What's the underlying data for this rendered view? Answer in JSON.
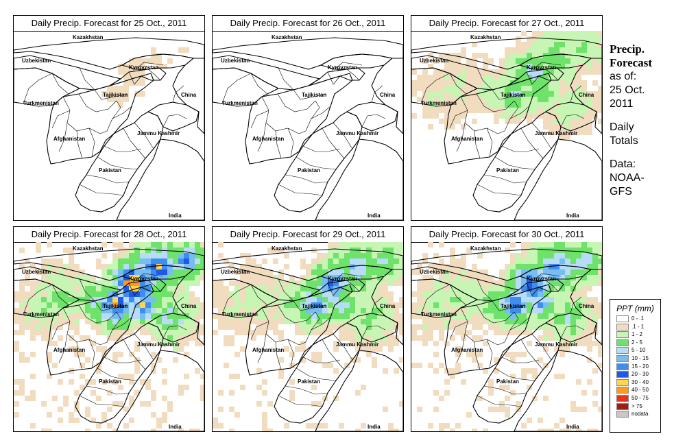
{
  "panels": [
    {
      "title": "Daily Precip. Forecast for  25 Oct., 2011",
      "precip_intensity": 0.08
    },
    {
      "title": "Daily Precip. Forecast for  26 Oct., 2011",
      "precip_intensity": 0.05
    },
    {
      "title": "Daily Precip. Forecast for  27 Oct., 2011",
      "precip_intensity": 0.55
    },
    {
      "title": "Daily Precip. Forecast for  28 Oct., 2011",
      "precip_intensity": 1.0
    },
    {
      "title": "Daily Precip. Forecast for  29 Oct., 2011",
      "precip_intensity": 0.75
    },
    {
      "title": "Daily Precip. Forecast for  30 Oct., 2011",
      "precip_intensity": 0.85
    }
  ],
  "map_labels": {
    "kazakhstan": "Kazakhstan",
    "uzbekistan": "Uzbekistan",
    "kyrgyzstan": "Kyrgyzstan",
    "tajikistan": "Tajikistan",
    "turkmenistan": "Turkmenistan",
    "china": "China",
    "afghanistan": "Afghanistan",
    "jammu_kashmir": "Jammu Kashmir",
    "pakistan": "Pakistan",
    "india": "India"
  },
  "info": {
    "heading_line1": "Precip.",
    "heading_line2": "Forecast",
    "asof_label": "as of:",
    "asof_date": "25 Oct.",
    "asof_year": "2011",
    "totals_line1": "Daily",
    "totals_line2": "Totals",
    "data_label": "Data:",
    "data_src1": "NOAA-",
    "data_src2": "GFS"
  },
  "legend": {
    "title": "PPT (mm)",
    "items": [
      {
        "label": "0 - .1",
        "color": "#ffffff"
      },
      {
        "label": ".1 - 1",
        "color": "#f1dcbf"
      },
      {
        "label": "1 - 2",
        "color": "#c6f5b4"
      },
      {
        "label": "2 - 5",
        "color": "#6ee26a"
      },
      {
        "label": "5 - 10",
        "color": "#b6dcf7"
      },
      {
        "label": "10 - 15",
        "color": "#78bdf2"
      },
      {
        "label": "15 - 20",
        "color": "#3d8ef0"
      },
      {
        "label": "20 - 30",
        "color": "#1f59e6"
      },
      {
        "label": "30 - 40",
        "color": "#ffd64a"
      },
      {
        "label": "40 - 50",
        "color": "#ff9a1e"
      },
      {
        "label": "50 - 75",
        "color": "#e8321c"
      },
      {
        "label": "> 75",
        "color": "#9a1f14"
      },
      {
        "label": "nodata",
        "color": "#c8c8c8"
      }
    ]
  }
}
